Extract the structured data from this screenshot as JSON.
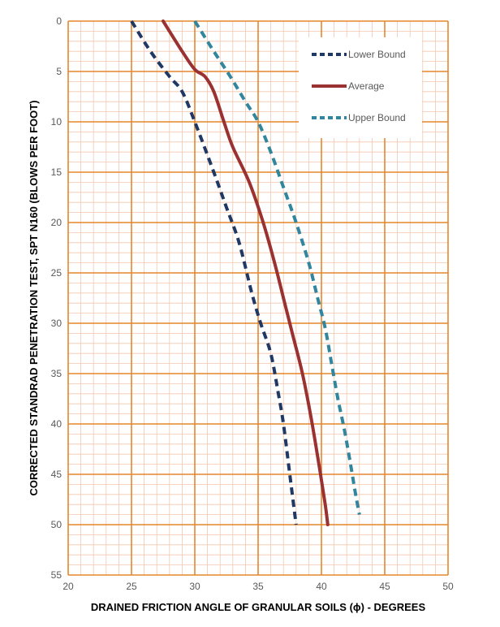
{
  "chart_data": {
    "type": "line",
    "xlabel": "DRAINED FRICTION ANGLE OF GRANULAR SOILS (ϕ) - DEGREES",
    "ylabel": "CORRECTED STANDRAD PENETRATION TEST, SPT N160 (BLOWS PER FOOT)",
    "xlim": [
      20,
      50
    ],
    "ylim": [
      0,
      55
    ],
    "y_inverted": true,
    "x_ticks": [
      "20",
      "25",
      "30",
      "35",
      "40",
      "45",
      "50"
    ],
    "y_ticks": [
      "0",
      "5",
      "10",
      "15",
      "20",
      "25",
      "30",
      "35",
      "40",
      "45",
      "50",
      "55"
    ],
    "x_major_step": 5,
    "y_major_step": 5,
    "x_minor_step": 1,
    "y_minor_step": 1,
    "grid": true,
    "legend_position": "top-right",
    "colors": {
      "major_grid": "#e6852d",
      "minor_grid": "#f4c6ad"
    },
    "series": [
      {
        "name": "Lower Bound",
        "color": "#203864",
        "style": "dashed",
        "points": [
          [
            25,
            0
          ],
          [
            26.5,
            3
          ],
          [
            28,
            5.5
          ],
          [
            29,
            7
          ],
          [
            30,
            10
          ],
          [
            31.5,
            15
          ],
          [
            32.5,
            18.5
          ],
          [
            33.5,
            22
          ],
          [
            34.5,
            27
          ],
          [
            35.2,
            30
          ],
          [
            36,
            33
          ],
          [
            36.6,
            37
          ],
          [
            37,
            40
          ],
          [
            37.5,
            45
          ],
          [
            38,
            50
          ]
        ]
      },
      {
        "name": "Average",
        "color": "#9b3232",
        "style": "solid",
        "points": [
          [
            27.5,
            0
          ],
          [
            29,
            3
          ],
          [
            30,
            4.8
          ],
          [
            30.8,
            5.5
          ],
          [
            31.5,
            7
          ],
          [
            32.3,
            10
          ],
          [
            33,
            12.5
          ],
          [
            34.3,
            16
          ],
          [
            35.4,
            20
          ],
          [
            36.3,
            24
          ],
          [
            37.1,
            28
          ],
          [
            37.7,
            31
          ],
          [
            38.5,
            35
          ],
          [
            39.2,
            39.5
          ],
          [
            39.8,
            44
          ],
          [
            40.3,
            48
          ],
          [
            40.5,
            50
          ]
        ]
      },
      {
        "name": "Upper Bound",
        "color": "#31859c",
        "style": "dashed",
        "points": [
          [
            30,
            0
          ],
          [
            31.5,
            3
          ],
          [
            32.8,
            5.5
          ],
          [
            34,
            8
          ],
          [
            35,
            10
          ],
          [
            36,
            13
          ],
          [
            37,
            16.5
          ],
          [
            38,
            20
          ],
          [
            39,
            24
          ],
          [
            39.7,
            27.5
          ],
          [
            40.3,
            30.5
          ],
          [
            40.8,
            34
          ],
          [
            41.3,
            37.5
          ],
          [
            41.8,
            40.5
          ],
          [
            42.3,
            44
          ],
          [
            42.7,
            47
          ],
          [
            43,
            49
          ]
        ]
      }
    ]
  }
}
